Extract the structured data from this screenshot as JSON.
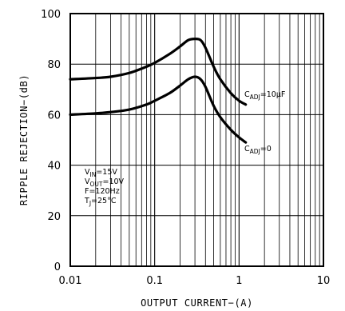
{
  "chart_data": {
    "type": "line",
    "xlabel": "OUTPUT CURRENT−(A)",
    "ylabel": "RIPPLE REJECTION−(dB)",
    "xscale": "log",
    "xlim": [
      0.01,
      10
    ],
    "ylim": [
      0,
      100
    ],
    "x_ticks": [
      0.01,
      0.1,
      1,
      10
    ],
    "x_tick_labels": [
      "0.01",
      "0.1",
      "1",
      "10"
    ],
    "y_ticks": [
      0,
      20,
      40,
      60,
      80,
      100
    ],
    "y_tick_labels": [
      "0",
      "20",
      "40",
      "60",
      "80",
      "100"
    ],
    "grid": true,
    "series": [
      {
        "x": [
          0.01,
          0.02,
          0.03,
          0.05,
          0.08,
          0.1,
          0.15,
          0.2,
          0.25,
          0.3,
          0.35,
          0.4,
          0.5,
          0.6,
          0.8,
          1.0,
          1.2
        ],
        "y": [
          74,
          74.5,
          75,
          76.5,
          79,
          80.5,
          84,
          87,
          89.5,
          90,
          89.5,
          86.5,
          79,
          74,
          68.5,
          65.5,
          64
        ]
      },
      {
        "x": [
          0.01,
          0.02,
          0.03,
          0.05,
          0.08,
          0.1,
          0.15,
          0.2,
          0.25,
          0.3,
          0.35,
          0.4,
          0.5,
          0.6,
          0.8,
          1.0,
          1.2
        ],
        "y": [
          60,
          60.5,
          61,
          62,
          64,
          65.5,
          68.5,
          71.5,
          74,
          75,
          74,
          71,
          63.5,
          59,
          54,
          51,
          49
        ]
      }
    ],
    "series_labels": [
      {
        "main": "C",
        "sub": "ADJ",
        "tail": "=10µF"
      },
      {
        "main": "C",
        "sub": "ADJ",
        "tail": "=0"
      }
    ],
    "conditions": [
      {
        "main": "V",
        "sub": "IN",
        "tail": "=15V"
      },
      {
        "main": "V",
        "sub": "OUT",
        "tail": "=10V"
      },
      {
        "main": "F=120Hz",
        "sub": "",
        "tail": ""
      },
      {
        "main": "T",
        "sub": "J",
        "tail": "=25°C"
      }
    ]
  }
}
